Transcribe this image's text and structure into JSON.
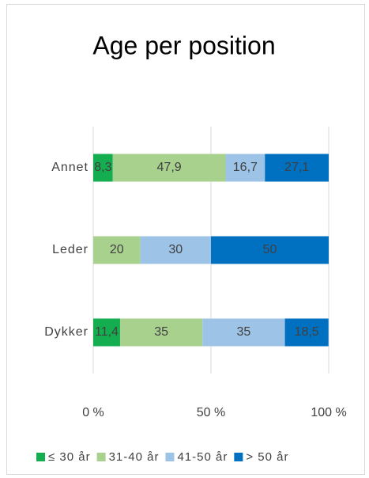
{
  "chart_data": {
    "type": "bar",
    "orientation": "horizontal",
    "stacked": true,
    "title": "Age per position",
    "categories": [
      "Annet",
      "Leder",
      "Dykker"
    ],
    "series": [
      {
        "name": "≤ 30 år",
        "color": "#14ad50",
        "values": [
          8.3,
          null,
          11.4
        ],
        "value_labels": [
          "8,3",
          null,
          "11,4"
        ]
      },
      {
        "name": "31-40 år",
        "color": "#a9d18e",
        "values": [
          47.9,
          20,
          35
        ],
        "value_labels": [
          "47,9",
          "20",
          "35"
        ]
      },
      {
        "name": "41-50 år",
        "color": "#9dc3e6",
        "values": [
          16.7,
          30,
          35
        ],
        "value_labels": [
          "16,7",
          "30",
          "35"
        ]
      },
      {
        "name": "> 50 år",
        "color": "#0070c0",
        "values": [
          27.1,
          50,
          18.5
        ],
        "value_labels": [
          "27,1",
          "50",
          "18,5"
        ]
      }
    ],
    "xlim": [
      0,
      100
    ],
    "xticks": [
      {
        "value": 0,
        "label": "0 %"
      },
      {
        "value": 50,
        "label": "50 %"
      },
      {
        "value": 100,
        "label": "100 %"
      }
    ],
    "grid": true,
    "legend": "bottom"
  }
}
